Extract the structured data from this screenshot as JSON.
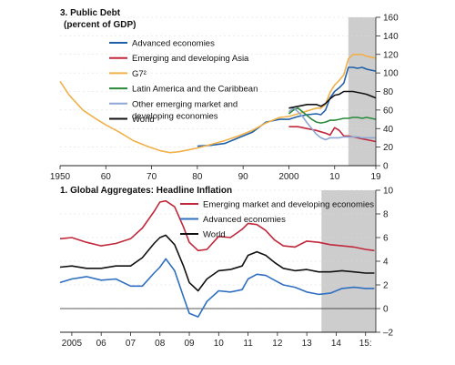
{
  "chart_data": [
    {
      "type": "line",
      "title": "3. Public Debt",
      "subtitle": "(percent of GDP)",
      "y_axis_side": "right",
      "ylim": [
        0,
        160
      ],
      "yticks": [
        0,
        20,
        40,
        60,
        80,
        100,
        120,
        140,
        160
      ],
      "xlim": [
        1950,
        2019
      ],
      "xticks": [
        {
          "value": 1950,
          "label": "1950"
        },
        {
          "value": 1960,
          "label": "60"
        },
        {
          "value": 1970,
          "label": "70"
        },
        {
          "value": 1980,
          "label": "80"
        },
        {
          "value": 1990,
          "label": "90"
        },
        {
          "value": 2000,
          "label": "2000"
        },
        {
          "value": 2010,
          "label": "10"
        },
        {
          "value": 2019,
          "label": "19"
        }
      ],
      "shaded_region": [
        2013,
        2019
      ],
      "shade_color": "#c8c8c8",
      "legend_position": "top-left",
      "series": [
        {
          "name": "Advanced economies",
          "color": "#2060a8",
          "x": [
            1980,
            1983,
            1986,
            1989,
            1992,
            1995,
            1998,
            2000,
            2002,
            2004,
            2006,
            2007,
            2008,
            2009,
            2010,
            2011,
            2012,
            2013,
            2014,
            2015,
            2016,
            2017,
            2018,
            2019
          ],
          "y": [
            21,
            22,
            24,
            30,
            36,
            47,
            50,
            50,
            53,
            55,
            56,
            55,
            60,
            73,
            80,
            84,
            89,
            106,
            106,
            105,
            106,
            104,
            103,
            102
          ]
        },
        {
          "name": "Emerging and developing Asia",
          "color": "#c0283c",
          "x": [
            2000,
            2002,
            2004,
            2006,
            2008,
            2009,
            2010,
            2011,
            2012,
            2013,
            2014,
            2015,
            2016,
            2017,
            2018,
            2019
          ],
          "y": [
            42,
            42,
            40,
            38,
            35,
            33,
            41,
            38,
            32,
            32,
            31,
            30,
            29,
            28,
            27,
            26
          ]
        },
        {
          "name": "G7²",
          "color": "#f0b04a",
          "x": [
            1950,
            1952,
            1955,
            1958,
            1960,
            1963,
            1966,
            1969,
            1972,
            1974,
            1976,
            1978,
            1980,
            1983,
            1986,
            1989,
            1992,
            1995,
            1998,
            2000,
            2002,
            2004,
            2006,
            2007,
            2008,
            2009,
            2010,
            2011,
            2012,
            2013,
            2014,
            2015,
            2016,
            2017,
            2018,
            2019
          ],
          "y": [
            91,
            76,
            60,
            50,
            44,
            36,
            27,
            21,
            16,
            14,
            15,
            17,
            19,
            23,
            27,
            32,
            38,
            46,
            52,
            53,
            56,
            59,
            62,
            62,
            66,
            79,
            87,
            92,
            98,
            115,
            120,
            120,
            120,
            118,
            117,
            116
          ]
        },
        {
          "name": "Latin America and the Caribbean",
          "color": "#2a8a3a",
          "x": [
            2000,
            2001,
            2002,
            2003,
            2004,
            2005,
            2006,
            2007,
            2008,
            2009,
            2010,
            2011,
            2012,
            2013,
            2014,
            2015,
            2016,
            2017,
            2018,
            2019
          ],
          "y": [
            56,
            60,
            62,
            58,
            54,
            50,
            47,
            46,
            47,
            49,
            49,
            50,
            51,
            51,
            52,
            52,
            51,
            52,
            51,
            50
          ]
        },
        {
          "name": "Other emerging market and developing economies",
          "color": "#8ea6d4",
          "x": [
            2000,
            2001,
            2002,
            2003,
            2004,
            2005,
            2006,
            2007,
            2008,
            2009,
            2010,
            2011,
            2012,
            2013,
            2014,
            2015,
            2016,
            2017,
            2018,
            2019
          ],
          "y": [
            58,
            62,
            58,
            53,
            46,
            40,
            34,
            30,
            28,
            30,
            30,
            30,
            31,
            31,
            31,
            31,
            30,
            30,
            30,
            30
          ]
        },
        {
          "name": "World",
          "color": "#111111",
          "x": [
            2000,
            2002,
            2004,
            2006,
            2007,
            2008,
            2009,
            2010,
            2011,
            2012,
            2013,
            2014,
            2015,
            2016,
            2017,
            2018,
            2019
          ],
          "y": [
            62,
            64,
            66,
            66,
            64,
            67,
            72,
            76,
            77,
            80,
            80,
            80,
            79,
            78,
            77,
            75,
            73
          ]
        }
      ]
    },
    {
      "type": "line",
      "title": "1. Global Aggregates: Headline Inflation",
      "y_axis_side": "right",
      "ylim": [
        -2,
        10
      ],
      "yticks": [
        -2,
        0,
        2,
        4,
        6,
        8,
        10
      ],
      "zero_line": true,
      "xlim": [
        2004.6,
        2015.35
      ],
      "xticks": [
        {
          "value": 2005,
          "label": "2005"
        },
        {
          "value": 2006,
          "label": "06"
        },
        {
          "value": 2007,
          "label": "07"
        },
        {
          "value": 2008,
          "label": "08"
        },
        {
          "value": 2009,
          "label": "09"
        },
        {
          "value": 2010,
          "label": "10"
        },
        {
          "value": 2011,
          "label": "11"
        },
        {
          "value": 2012,
          "label": "12"
        },
        {
          "value": 2013,
          "label": "13"
        },
        {
          "value": 2014,
          "label": "14"
        },
        {
          "value": 2015,
          "label": "15:"
        }
      ],
      "shaded_region": [
        2013.5,
        2015.35
      ],
      "shade_color": "#c8c8c8",
      "legend_position": "top-center",
      "series": [
        {
          "name": "Emerging market and developing economies",
          "color": "#c0283c",
          "x": [
            2004.6,
            2005.0,
            2005.5,
            2006.0,
            2006.5,
            2007.0,
            2007.4,
            2007.8,
            2008.0,
            2008.2,
            2008.5,
            2008.8,
            2009.0,
            2009.3,
            2009.6,
            2010.0,
            2010.4,
            2010.8,
            2011.0,
            2011.3,
            2011.6,
            2011.9,
            2012.2,
            2012.6,
            2013.0,
            2013.4,
            2013.8,
            2014.2,
            2014.6,
            2015.0,
            2015.3
          ],
          "y": [
            5.9,
            6.0,
            5.6,
            5.3,
            5.5,
            5.9,
            6.8,
            8.2,
            9.0,
            9.1,
            8.6,
            6.9,
            5.6,
            4.9,
            5.0,
            6.1,
            6.0,
            6.7,
            7.2,
            7.1,
            6.6,
            5.8,
            5.3,
            5.2,
            5.7,
            5.6,
            5.4,
            5.3,
            5.2,
            5.0,
            4.9
          ]
        },
        {
          "name": "Advanced economies",
          "color": "#2f6fc0",
          "x": [
            2004.6,
            2005.0,
            2005.5,
            2006.0,
            2006.5,
            2007.0,
            2007.4,
            2007.8,
            2008.0,
            2008.2,
            2008.5,
            2008.8,
            2009.0,
            2009.3,
            2009.6,
            2010.0,
            2010.4,
            2010.8,
            2011.0,
            2011.3,
            2011.6,
            2011.9,
            2012.2,
            2012.6,
            2013.0,
            2013.4,
            2013.8,
            2014.2,
            2014.6,
            2015.0,
            2015.3
          ],
          "y": [
            2.2,
            2.5,
            2.7,
            2.4,
            2.5,
            1.9,
            1.9,
            3.0,
            3.5,
            4.2,
            3.2,
            1.0,
            -0.4,
            -0.7,
            0.6,
            1.5,
            1.4,
            1.6,
            2.5,
            2.9,
            2.8,
            2.4,
            2.0,
            1.8,
            1.4,
            1.2,
            1.3,
            1.7,
            1.8,
            1.7,
            1.7
          ]
        },
        {
          "name": "World",
          "color": "#111111",
          "x": [
            2004.6,
            2005.0,
            2005.5,
            2006.0,
            2006.5,
            2007.0,
            2007.4,
            2007.8,
            2008.0,
            2008.2,
            2008.5,
            2008.8,
            2009.0,
            2009.3,
            2009.6,
            2010.0,
            2010.4,
            2010.8,
            2011.0,
            2011.3,
            2011.6,
            2011.9,
            2012.2,
            2012.6,
            2013.0,
            2013.4,
            2013.8,
            2014.2,
            2014.6,
            2015.0,
            2015.3
          ],
          "y": [
            3.5,
            3.6,
            3.4,
            3.4,
            3.6,
            3.6,
            4.3,
            5.5,
            6.0,
            6.2,
            5.4,
            3.6,
            2.2,
            1.5,
            2.5,
            3.2,
            3.3,
            3.6,
            4.5,
            4.8,
            4.5,
            3.9,
            3.4,
            3.2,
            3.3,
            3.1,
            3.1,
            3.2,
            3.1,
            3.0,
            3.0
          ]
        }
      ]
    }
  ]
}
